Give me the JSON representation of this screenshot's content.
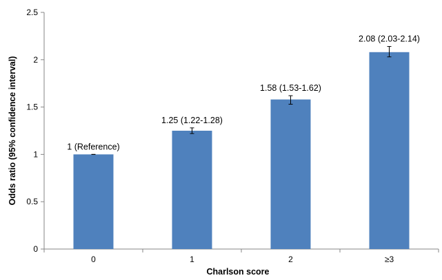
{
  "chart_data": {
    "type": "bar",
    "title": "",
    "xlabel": "Charlson score",
    "ylabel": "Odds ratio (95% confidence interval)",
    "categories": [
      "0",
      "1",
      "2",
      "≥3"
    ],
    "values": [
      1,
      1.25,
      1.58,
      2.08
    ],
    "ci_lower": [
      1,
      1.22,
      1.53,
      2.03
    ],
    "ci_upper": [
      1,
      1.28,
      1.62,
      2.14
    ],
    "data_labels": [
      "1 (Reference)",
      "1.25 (1.22-1.28)",
      "1.58 (1.53-1.62)",
      "2.08 (2.03-2.14)"
    ],
    "ylim": [
      0,
      2.5
    ],
    "y_ticks": [
      "0",
      "0.5",
      "1",
      "1.5",
      "2",
      "2.5"
    ],
    "grid": false,
    "legend": "none",
    "bar_color": "#4f81bd",
    "axis_color": "#868686"
  }
}
